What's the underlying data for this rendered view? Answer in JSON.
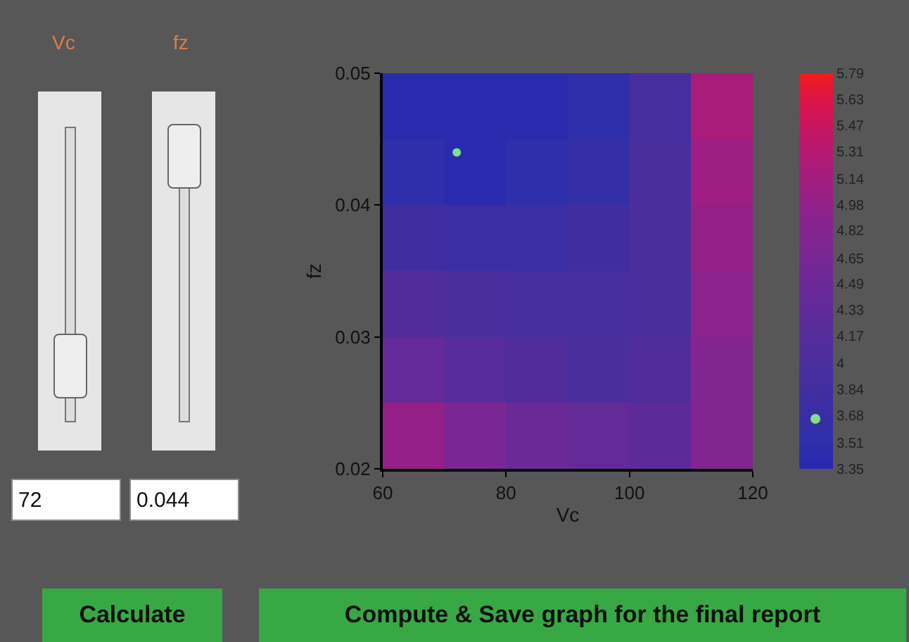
{
  "chart_data": {
    "type": "heatmap",
    "xlabel": "Vc",
    "ylabel": "fz",
    "x": [
      65,
      75,
      85,
      95,
      105,
      115
    ],
    "y": [
      0.0475,
      0.0425,
      0.0375,
      0.0325,
      0.0275,
      0.0225
    ],
    "cells": [
      [
        3.4,
        3.4,
        3.4,
        3.5,
        3.9,
        5.2
      ],
      [
        3.5,
        3.4,
        3.5,
        3.6,
        4.0,
        5.1
      ],
      [
        3.8,
        3.7,
        3.7,
        3.8,
        4.0,
        5.0
      ],
      [
        4.1,
        4.0,
        3.9,
        3.9,
        4.0,
        4.9
      ],
      [
        4.4,
        4.2,
        4.1,
        4.0,
        4.1,
        4.8
      ],
      [
        5.0,
        4.7,
        4.5,
        4.4,
        4.3,
        4.8
      ]
    ],
    "xlim": [
      60,
      120
    ],
    "xticks": [
      60,
      80,
      100,
      120
    ],
    "ylim": [
      0.02,
      0.05
    ],
    "yticks": [
      0.02,
      0.03,
      0.04,
      0.05
    ],
    "clim": [
      3.35,
      5.79
    ],
    "cticks": [
      3.35,
      3.51,
      3.68,
      3.84,
      4,
      4.17,
      4.33,
      4.49,
      4.65,
      4.82,
      4.98,
      5.14,
      5.31,
      5.47,
      5.63,
      5.79
    ],
    "colors": [
      "#2828b0",
      "#3030aa",
      "#3a2ea4",
      "#442e9e",
      "#4e2e9c",
      "#582c9a",
      "#642a98",
      "#702896",
      "#7e2692",
      "#8c228c",
      "#9e1e82",
      "#b01a74",
      "#c41662",
      "#da144a",
      "#f01c1c"
    ],
    "series": [
      {
        "type": "scatter",
        "x": [
          72
        ],
        "values": [
          0.044
        ],
        "color": "#7fe08a"
      }
    ],
    "annotations": [
      "Vc",
      "fz",
      "72",
      "0.044",
      "Calculate",
      "Compute & Save graph for the final report"
    ]
  }
}
